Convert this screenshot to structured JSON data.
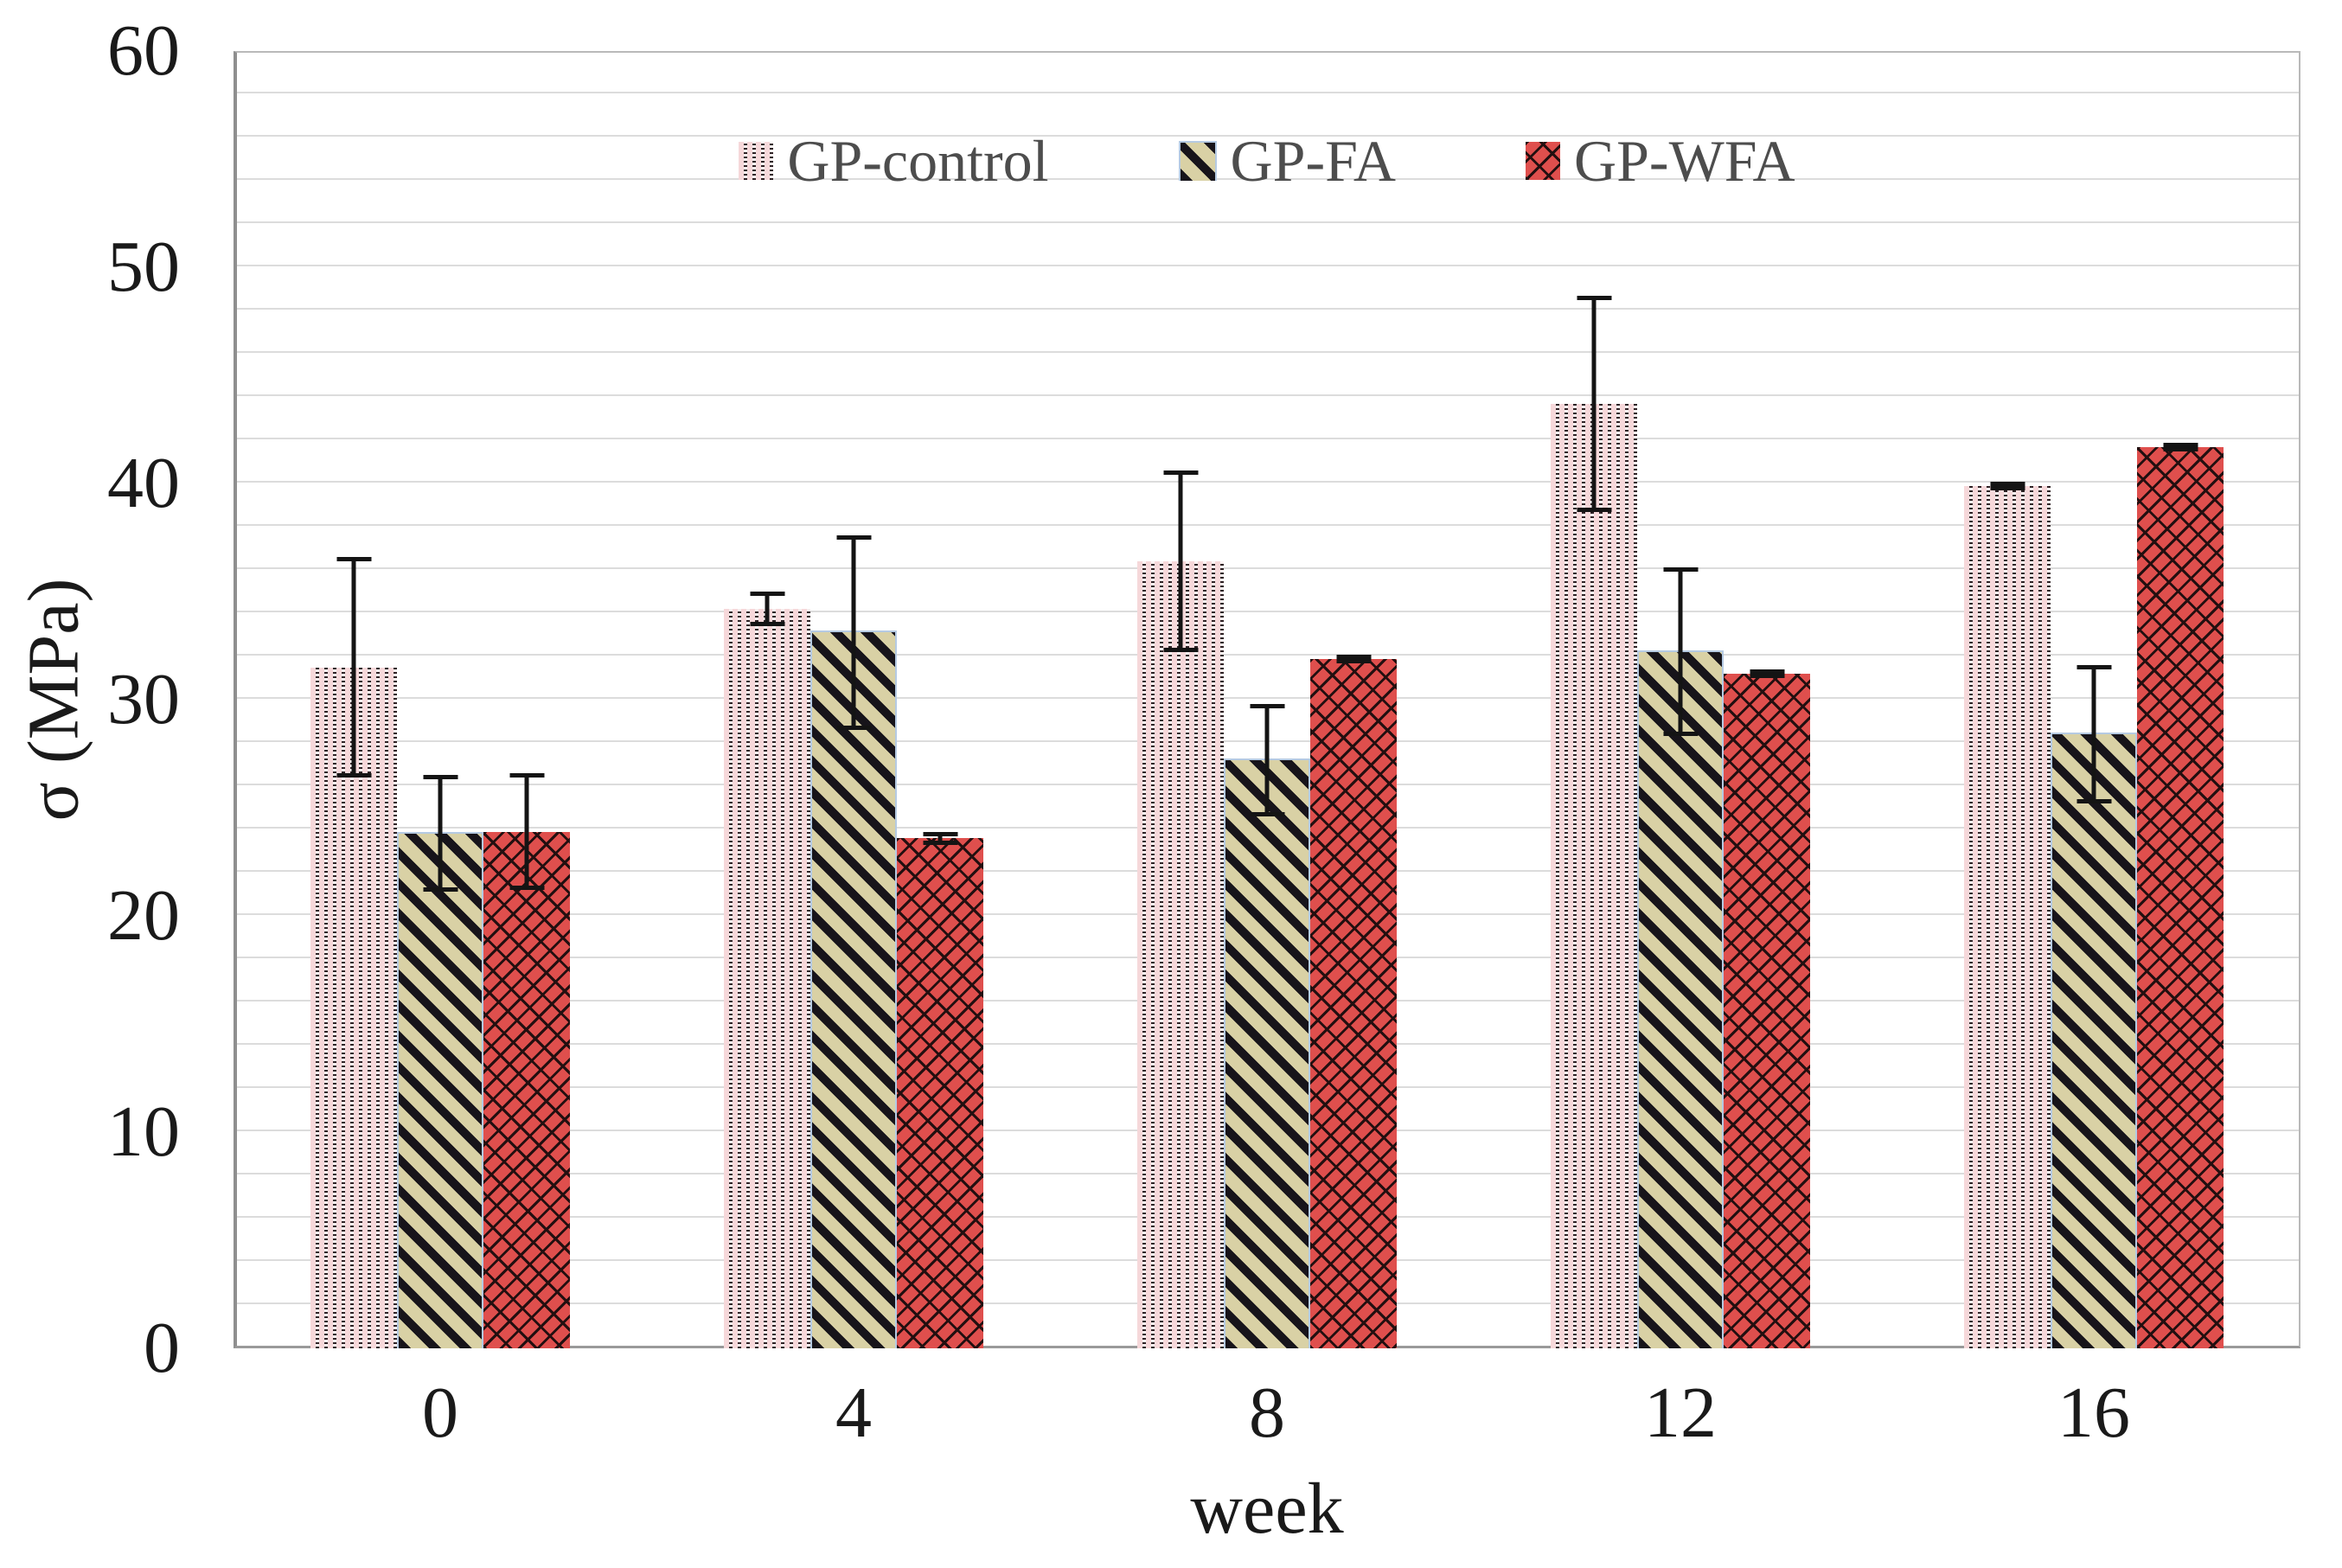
{
  "figure": {
    "background": "#ffffff"
  },
  "chart_data": {
    "type": "bar",
    "title": "",
    "xlabel": "week",
    "ylabel": "σ (MPa)",
    "ylim": [
      0,
      60
    ],
    "yticks": [
      0,
      10,
      20,
      30,
      40,
      50,
      60
    ],
    "minor_gridline_step": 2,
    "grid": true,
    "legend_position": "top-center",
    "categories": [
      "0",
      "4",
      "8",
      "12",
      "16"
    ],
    "series": [
      {
        "name": "GP-control",
        "pattern": "pink-dotted",
        "color": "#f6d8da",
        "values": [
          31.5,
          34.2,
          36.4,
          43.7,
          39.9
        ],
        "errors": [
          5.1,
          0.8,
          4.2,
          5.0,
          0.2
        ]
      },
      {
        "name": "GP-FA",
        "pattern": "khaki-diagonal-stripes",
        "color": "#d9d1a5",
        "edge_color": "#b5cae2",
        "values": [
          23.9,
          33.2,
          27.3,
          32.3,
          28.5
        ],
        "errors": [
          2.7,
          4.5,
          2.6,
          3.9,
          3.2
        ]
      },
      {
        "name": "GP-WFA",
        "pattern": "red-diagonal-brick",
        "color": "#df4f4d",
        "values": [
          23.9,
          23.6,
          31.9,
          31.2,
          41.7
        ],
        "errors": [
          2.7,
          0.3,
          0.2,
          0.2,
          0.2
        ]
      }
    ],
    "error_bar_color": "#141414",
    "gridline_color": "#dcdcdc",
    "tick_label_color": "#1a1a1a",
    "legend_text_color": "#4d4d4d"
  }
}
